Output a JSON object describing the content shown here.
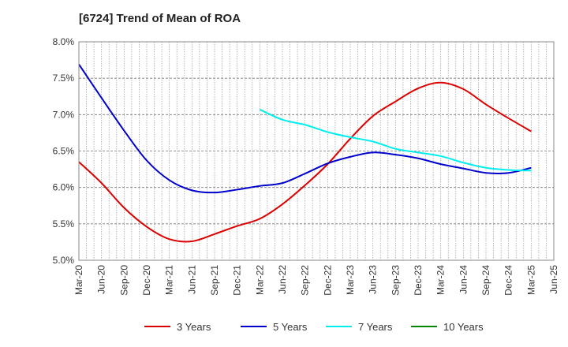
{
  "chart_data": {
    "type": "line",
    "title": "[6724]  Trend of Mean of ROA",
    "xlabel": "",
    "ylabel": "",
    "x": [
      "Mar-20",
      "Jun-20",
      "Sep-20",
      "Dec-20",
      "Mar-21",
      "Jun-21",
      "Sep-21",
      "Dec-21",
      "Mar-22",
      "Jun-22",
      "Sep-22",
      "Dec-22",
      "Mar-23",
      "Jun-23",
      "Sep-23",
      "Dec-23",
      "Mar-24",
      "Jun-24",
      "Sep-24",
      "Dec-24",
      "Mar-25",
      "Jun-25"
    ],
    "ylim": [
      5.0,
      8.0
    ],
    "yticks": [
      5.0,
      5.5,
      6.0,
      6.5,
      7.0,
      7.5,
      8.0
    ],
    "ytick_labels": [
      "5.0%",
      "5.5%",
      "6.0%",
      "6.5%",
      "7.0%",
      "7.5%",
      "8.0%"
    ],
    "grid": true,
    "legend_position": "bottom",
    "series": [
      {
        "name": "3 Years",
        "color": "#dd0000",
        "values": [
          6.35,
          6.06,
          5.72,
          5.46,
          5.29,
          5.26,
          5.36,
          5.47,
          5.57,
          5.77,
          6.03,
          6.32,
          6.67,
          6.98,
          7.18,
          7.36,
          7.44,
          7.35,
          7.14,
          6.95,
          6.77,
          null
        ]
      },
      {
        "name": "5 Years",
        "color": "#0000cc",
        "values": [
          7.69,
          7.23,
          6.78,
          6.37,
          6.1,
          5.96,
          5.93,
          5.97,
          6.02,
          6.06,
          6.19,
          6.33,
          6.42,
          6.48,
          6.45,
          6.4,
          6.32,
          6.26,
          6.2,
          6.2,
          6.27,
          null
        ]
      },
      {
        "name": "7 Years",
        "color": "#00eeee",
        "values": [
          null,
          null,
          null,
          null,
          null,
          null,
          null,
          null,
          7.07,
          6.93,
          6.86,
          6.76,
          6.69,
          6.63,
          6.53,
          6.48,
          6.43,
          6.34,
          6.27,
          6.24,
          6.23,
          null
        ]
      },
      {
        "name": "10 Years",
        "color": "#008800",
        "values": [
          null,
          null,
          null,
          null,
          null,
          null,
          null,
          null,
          null,
          null,
          null,
          null,
          null,
          null,
          null,
          null,
          null,
          null,
          null,
          null,
          null,
          null
        ]
      }
    ]
  }
}
